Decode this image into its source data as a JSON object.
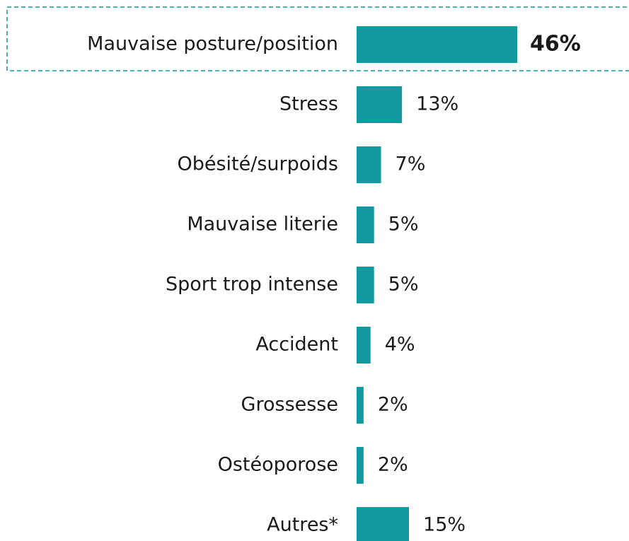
{
  "chart_data": {
    "type": "hbar",
    "categories": [
      "Mauvaise posture/position",
      "Stress",
      "Obésité/surpoids",
      "Mauvaise literie",
      "Sport trop intense",
      "Accident",
      "Grossesse",
      "Ostéoporose",
      "Autres*"
    ],
    "values": [
      46,
      13,
      7,
      5,
      5,
      4,
      2,
      2,
      15
    ],
    "value_labels": [
      "46%",
      "13%",
      "7%",
      "5%",
      "5%",
      "4%",
      "2%",
      "2%",
      "15%"
    ],
    "color": "#139aa0"
  }
}
